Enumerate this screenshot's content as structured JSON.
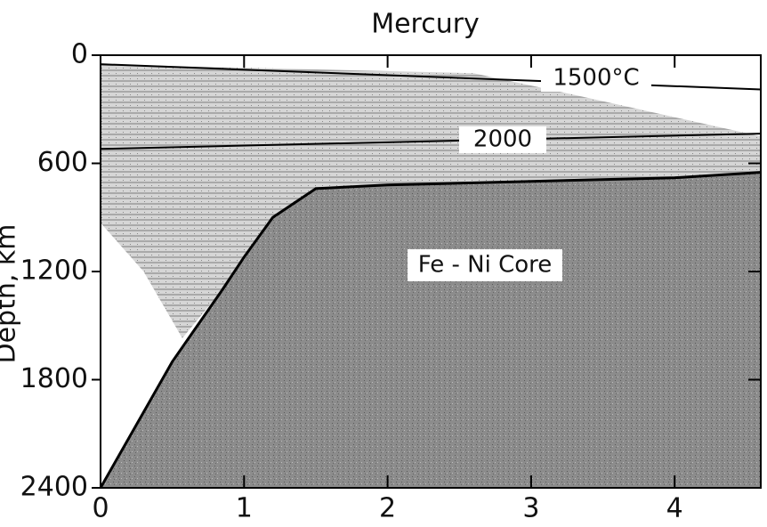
{
  "chart_data": {
    "type": "regions",
    "title": "Mercury",
    "y_label": "Depth, km",
    "xlim": [
      0,
      4.6
    ],
    "ylim": [
      0,
      2400
    ],
    "xticks": [
      0,
      1,
      2,
      3,
      4
    ],
    "yticks": [
      0,
      600,
      1200,
      1800,
      2400
    ],
    "core": {
      "label": "Fe - Ni Core",
      "color": "#7a7a7a",
      "x": [
        0,
        0.5,
        0.85,
        1.0,
        1.2,
        1.5,
        2,
        3,
        4,
        4.6
      ],
      "y": [
        2400,
        1700,
        1300,
        1120,
        900,
        740,
        720,
        700,
        680,
        650
      ]
    },
    "melt_zone": {
      "color": "#c4c4c4",
      "x": [
        0,
        2.6,
        3.3,
        4.6,
        4.6,
        4,
        3,
        2,
        1.5,
        1.2,
        1.0,
        0.85,
        0.57,
        0.3,
        0
      ],
      "y": [
        50,
        100,
        220,
        450,
        650,
        680,
        700,
        720,
        740,
        900,
        1120,
        1300,
        1570,
        1200,
        930
      ]
    },
    "isotherms": [
      {
        "label": "1500°C",
        "x": [
          0,
          4.6
        ],
        "y": [
          50,
          190
        ]
      },
      {
        "label": "2000",
        "x": [
          0,
          4.6
        ],
        "y": [
          520,
          435
        ]
      }
    ]
  }
}
